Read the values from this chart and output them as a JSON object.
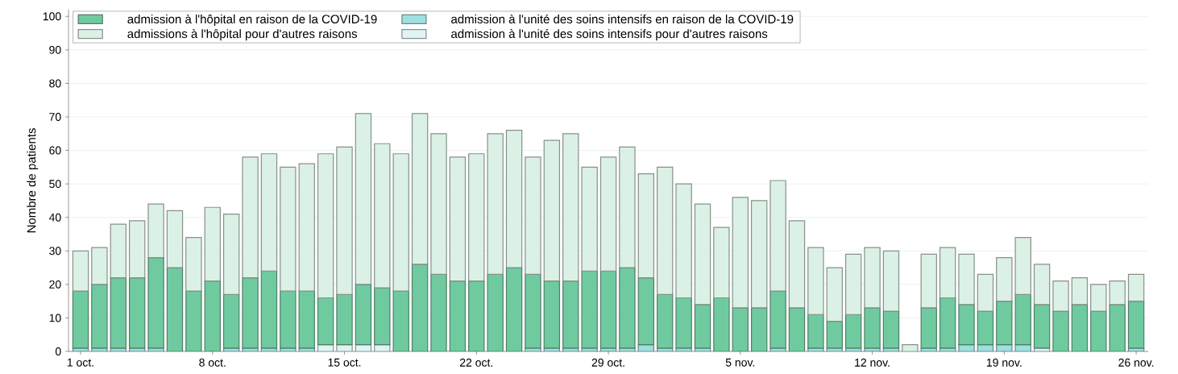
{
  "chart_data": {
    "type": "bar",
    "stacked": true,
    "ylabel": "Nombre de patients",
    "categories": [
      "1 oct.",
      null,
      null,
      null,
      null,
      null,
      null,
      "8 oct.",
      null,
      null,
      null,
      null,
      null,
      null,
      "15 oct.",
      null,
      null,
      null,
      null,
      null,
      null,
      "22 oct.",
      null,
      null,
      null,
      null,
      null,
      null,
      "29 oct.",
      null,
      null,
      null,
      null,
      null,
      null,
      "5 nov.",
      null,
      null,
      null,
      null,
      null,
      null,
      "12 nov.",
      null,
      null,
      null,
      null,
      null,
      null,
      "19 nov.",
      null,
      null,
      null,
      null,
      null,
      null,
      "26 nov."
    ],
    "series": [
      {
        "name": "admission à l'unité des soins intensifs en raison de la COVID-19",
        "color": "#9ee0df",
        "values": [
          1,
          1,
          1,
          1,
          1,
          null,
          null,
          null,
          1,
          1,
          1,
          1,
          1,
          null,
          null,
          null,
          null,
          null,
          null,
          null,
          null,
          null,
          null,
          null,
          1,
          1,
          1,
          1,
          1,
          1,
          2,
          1,
          1,
          1,
          null,
          null,
          null,
          1,
          null,
          1,
          1,
          1,
          1,
          1,
          null,
          1,
          1,
          2,
          2,
          2,
          2,
          null,
          null,
          null,
          null,
          null,
          1
        ]
      },
      {
        "name": "admission à l'unité des soins intensifs pour d'autres raisons",
        "color": "#e0f4f4",
        "values": [
          null,
          null,
          null,
          null,
          null,
          null,
          null,
          null,
          null,
          null,
          null,
          null,
          null,
          2,
          2,
          2,
          2,
          null,
          null,
          null,
          null,
          null,
          null,
          null,
          null,
          null,
          null,
          null,
          null,
          null,
          null,
          null,
          null,
          null,
          null,
          null,
          null,
          null,
          null,
          null,
          null,
          null,
          null,
          null,
          null,
          null,
          null,
          null,
          null,
          null,
          null,
          1,
          null,
          null,
          null,
          null,
          null
        ]
      },
      {
        "name": "admission à l'hôpital en raison de la COVID-19",
        "color": "#6fcb9f",
        "values": [
          17,
          19,
          21,
          21,
          27,
          25,
          18,
          21,
          16,
          21,
          23,
          17,
          17,
          14,
          15,
          18,
          17,
          18,
          26,
          23,
          21,
          21,
          23,
          25,
          22,
          20,
          20,
          23,
          23,
          24,
          20,
          16,
          15,
          13,
          16,
          13,
          13,
          17,
          13,
          10,
          8,
          10,
          12,
          11,
          null,
          12,
          15,
          12,
          10,
          13,
          15,
          13,
          12,
          14,
          12,
          14,
          14
        ]
      },
      {
        "name": "admissions à l'hôpital pour d'autres raisons",
        "color": "#dcf1e6",
        "values": [
          12,
          11,
          16,
          17,
          16,
          17,
          16,
          22,
          24,
          36,
          35,
          37,
          38,
          43,
          44,
          51,
          43,
          41,
          45,
          42,
          37,
          38,
          42,
          41,
          35,
          42,
          44,
          31,
          34,
          36,
          31,
          38,
          34,
          30,
          21,
          33,
          32,
          33,
          26,
          20,
          16,
          18,
          18,
          18,
          2,
          16,
          15,
          15,
          11,
          13,
          17,
          12,
          9,
          8,
          8,
          7,
          8
        ]
      }
    ],
    "ylim": [
      0,
      102
    ],
    "yticks": [
      0,
      10,
      20,
      30,
      40,
      50,
      60,
      70,
      80,
      90,
      100
    ],
    "grid": "y",
    "legend": "top left"
  }
}
